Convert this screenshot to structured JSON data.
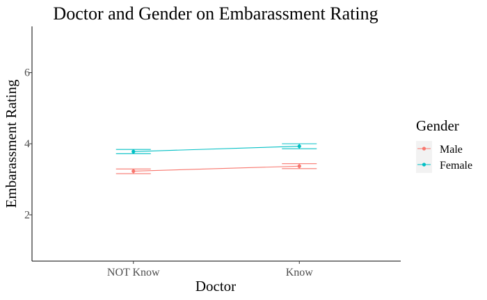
{
  "chart_data": {
    "type": "line",
    "title": "Doctor and Gender on Embarassment Rating",
    "xlabel": "Doctor",
    "ylabel": "Embarassment Rating",
    "categories": [
      "NOT Know",
      "Know"
    ],
    "ylim": [
      0.7,
      7.3
    ],
    "yticks": [
      2,
      4,
      6
    ],
    "grid": false,
    "error_bars": true,
    "legend": {
      "title": "Gender",
      "position": "right"
    },
    "series": [
      {
        "name": "Male",
        "color": "#F8766D",
        "values": [
          3.23,
          3.37
        ],
        "err_low": [
          3.16,
          3.3
        ],
        "err_high": [
          3.29,
          3.44
        ]
      },
      {
        "name": "Female",
        "color": "#00BFC4",
        "values": [
          3.78,
          3.93
        ],
        "err_low": [
          3.72,
          3.86
        ],
        "err_high": [
          3.84,
          4.0
        ]
      }
    ]
  }
}
